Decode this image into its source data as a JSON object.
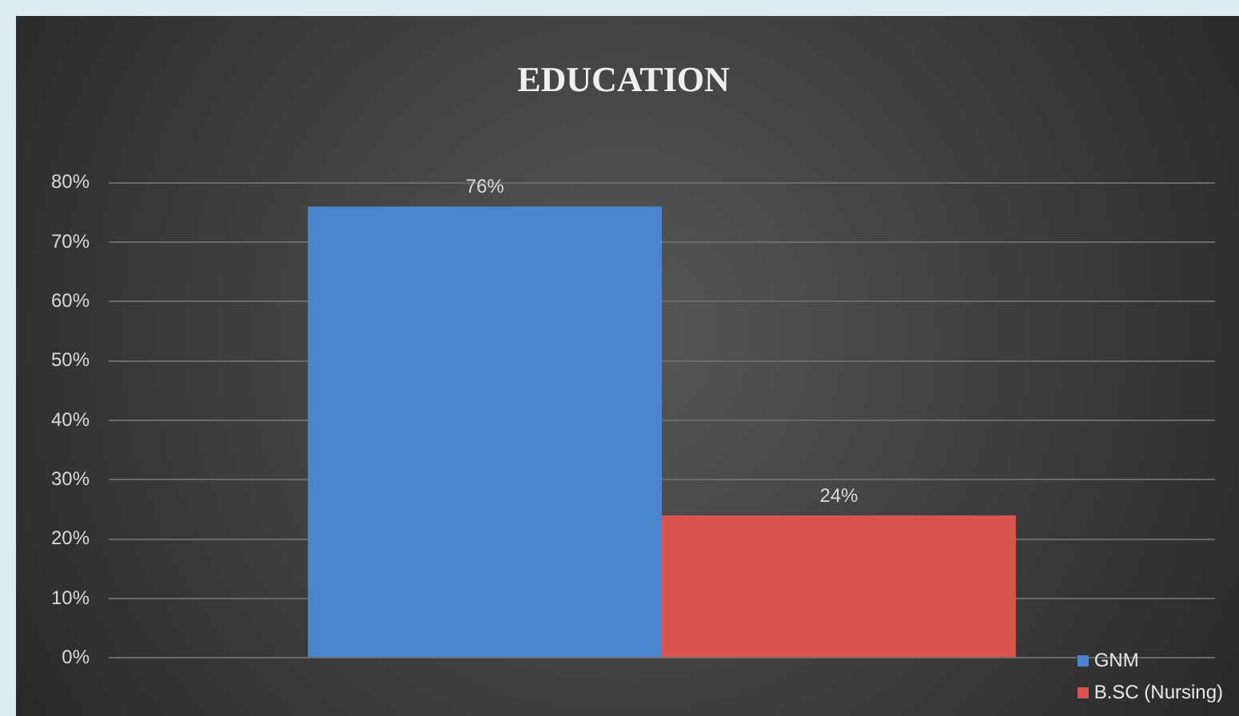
{
  "chart_data": {
    "type": "bar",
    "title": "EDUCATION",
    "categories": [
      null
    ],
    "series": [
      {
        "name": "GNM",
        "color": "#4a86d0",
        "values": [
          76
        ],
        "value_labels": [
          "76%"
        ]
      },
      {
        "name": "B.SC (Nursing)",
        "color": "#d9534f",
        "values": [
          24
        ],
        "value_labels": [
          "24%"
        ]
      }
    ],
    "ylim": [
      0,
      80
    ],
    "yticks": [
      {
        "value": 0,
        "label": "0%"
      },
      {
        "value": 10,
        "label": "10%"
      },
      {
        "value": 20,
        "label": "20%"
      },
      {
        "value": 30,
        "label": "30%"
      },
      {
        "value": 40,
        "label": "40%"
      },
      {
        "value": 50,
        "label": "50%"
      },
      {
        "value": 60,
        "label": "60%"
      },
      {
        "value": 70,
        "label": "70%"
      },
      {
        "value": 80,
        "label": "80%"
      }
    ],
    "grid": "y",
    "legend": "bottom right"
  }
}
